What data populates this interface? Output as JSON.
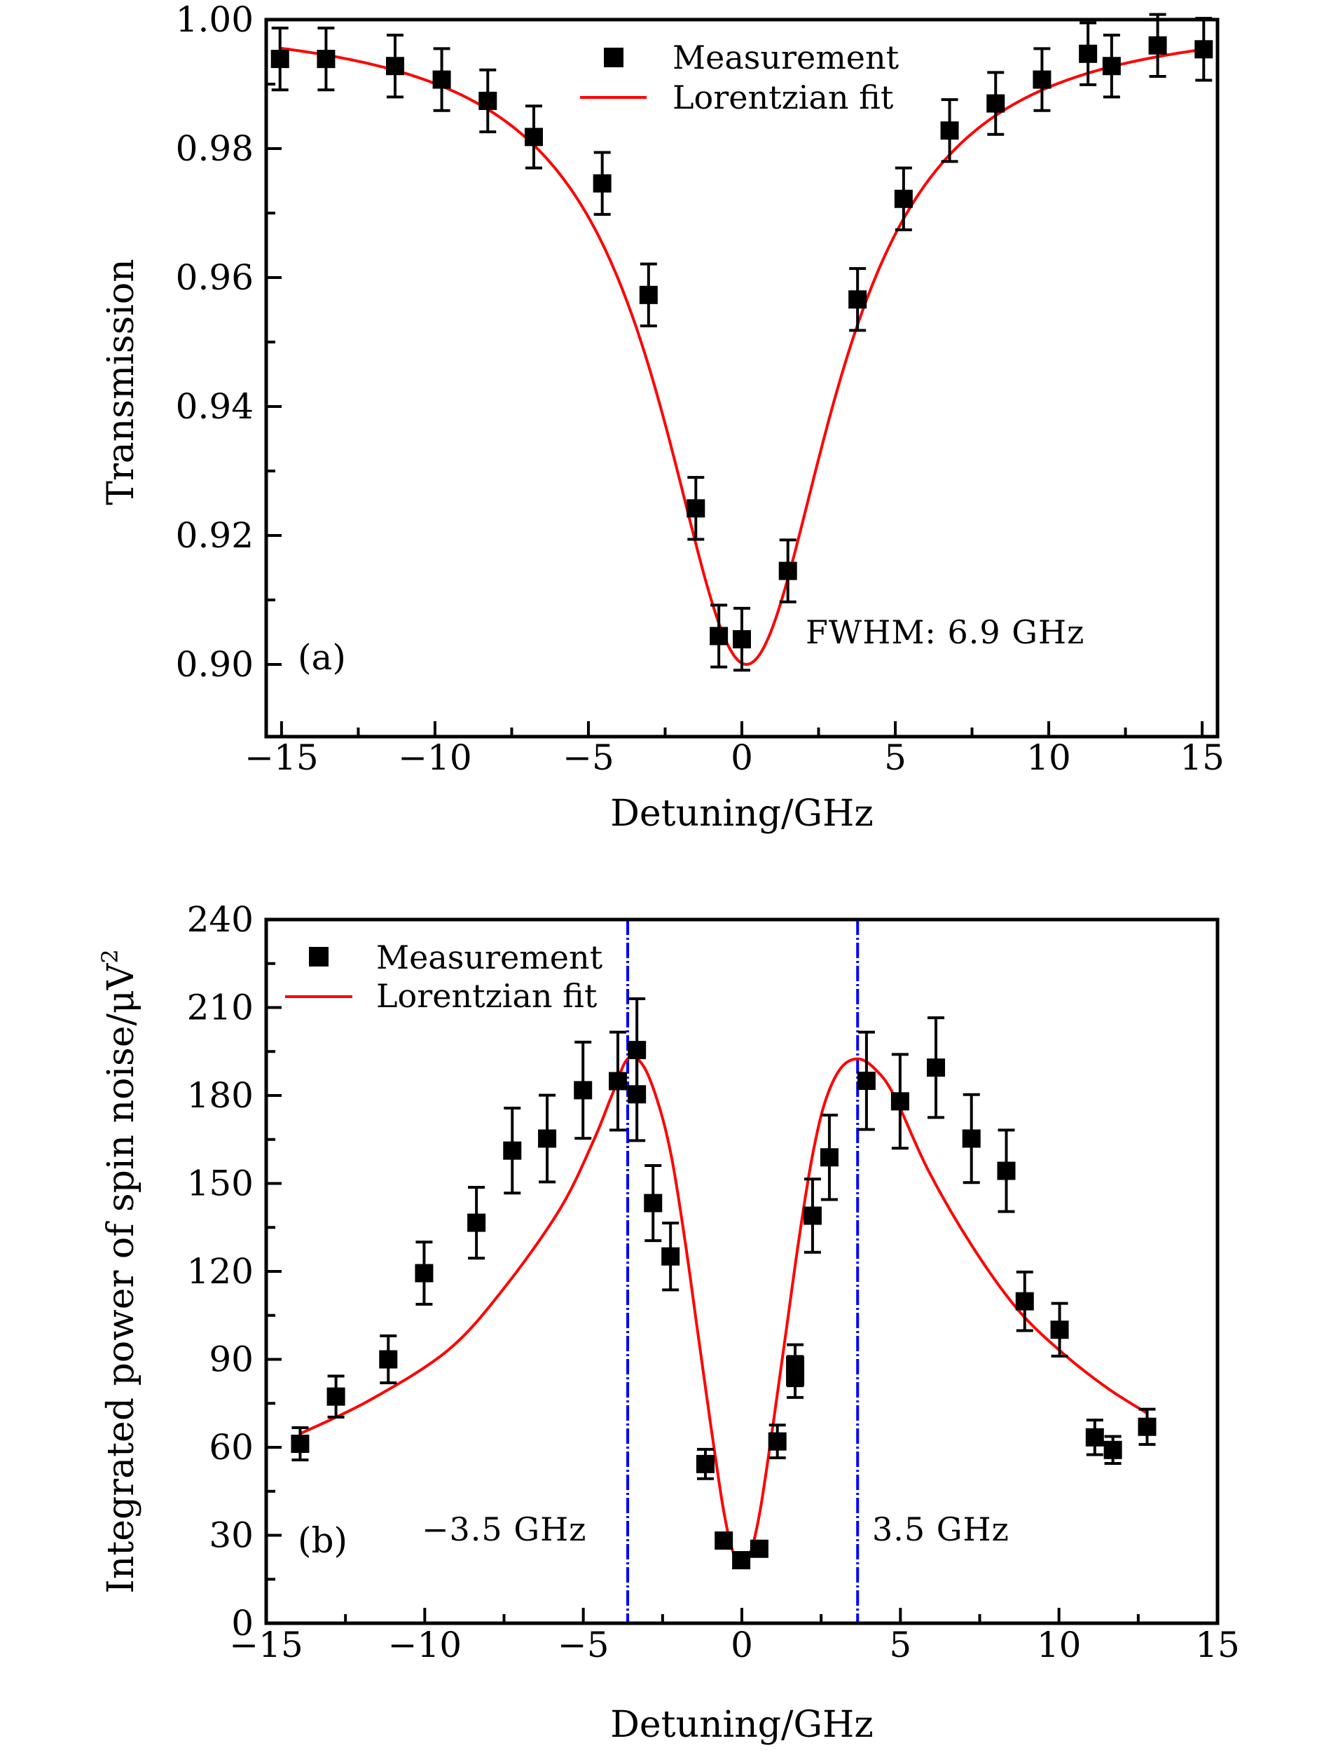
{
  "chart_data": [
    {
      "id": "a",
      "type": "scatter",
      "panel_label": "(a)",
      "title": "",
      "xlabel": "Detuning/GHz",
      "ylabel": "Transmission",
      "xlim": [
        -15.5,
        15.5
      ],
      "ylim": [
        0.8888,
        1.0
      ],
      "xticks": [
        -15,
        -10,
        -5,
        0,
        5,
        10,
        15
      ],
      "xtick_labels": [
        "−15",
        "−10",
        "−5",
        "0",
        "5",
        "10",
        "15"
      ],
      "xminor": [
        -12.5,
        -7.5,
        -2.5,
        2.5,
        7.5,
        12.5
      ],
      "yticks": [
        0.9,
        0.92,
        0.94,
        0.96,
        0.98,
        1.0
      ],
      "ytick_labels": [
        "0.90",
        "0.92",
        "0.94",
        "0.96",
        "0.98",
        "1.00"
      ],
      "yminor": [
        0.91,
        0.93,
        0.95,
        0.97,
        0.99
      ],
      "grid": false,
      "legend": {
        "placement": "top-center",
        "entries": [
          {
            "label": "Measurement",
            "kind": "marker",
            "color": "#000000"
          },
          {
            "label": "Lorentzian fit",
            "kind": "line",
            "color": "#ff0000"
          }
        ]
      },
      "annotations": [
        {
          "text": "FWHM: 6.9 GHz",
          "x": 2.0,
          "y": 0.9016
        }
      ],
      "series": [
        {
          "name": "Measurement",
          "color": "#000000",
          "x": [
            -15.05,
            -13.55,
            -11.3,
            -9.78,
            -8.28,
            -6.78,
            -4.55,
            -3.04,
            -1.5,
            -0.75,
            0.0,
            1.5,
            3.77,
            5.27,
            6.77,
            8.27,
            9.78,
            11.28,
            12.05,
            13.55,
            15.05
          ],
          "y": [
            0.9939,
            0.9939,
            0.9928,
            0.9907,
            0.9874,
            0.9818,
            0.9746,
            0.9573,
            0.9242,
            0.9044,
            0.9039,
            0.9145,
            0.9566,
            0.9722,
            0.9828,
            0.987,
            0.9907,
            0.9947,
            0.9928,
            0.996,
            0.9954
          ],
          "yerr": [
            0.0048,
            0.0048,
            0.0048,
            0.0048,
            0.0048,
            0.0048,
            0.0048,
            0.0048,
            0.0048,
            0.0048,
            0.0048,
            0.0048,
            0.0048,
            0.0048,
            0.0048,
            0.0048,
            0.0048,
            0.0048,
            0.0048,
            0.0048,
            0.0048
          ]
        },
        {
          "name": "Lorentzian fit",
          "color": "#ff0000",
          "model": "lorentzian-dip",
          "params": {
            "baseline": 1.0005,
            "minimum": 0.9,
            "center": 0.15,
            "fwhm": 6.9
          },
          "x_range": [
            -15.05,
            15.05
          ]
        }
      ]
    },
    {
      "id": "b",
      "type": "scatter",
      "panel_label": "(b)",
      "title": "",
      "xlabel": "Detuning/GHz",
      "ylabel": "Integrated power of spin noise/μV",
      "ylabel_superscript": "2",
      "xlim": [
        -15,
        15
      ],
      "ylim": [
        0,
        240
      ],
      "xticks": [
        -15,
        -10,
        -5,
        0,
        5,
        10,
        15
      ],
      "xtick_labels": [
        "−15",
        "−10",
        "−5",
        "0",
        "5",
        "10",
        "15"
      ],
      "xminor": [
        -12.5,
        -7.5,
        -2.5,
        2.5,
        7.5,
        12.5
      ],
      "yticks": [
        0,
        30,
        60,
        90,
        120,
        150,
        180,
        210,
        240
      ],
      "ytick_labels": [
        "0",
        "30",
        "60",
        "90",
        "120",
        "150",
        "180",
        "210",
        "240"
      ],
      "yminor": [
        15,
        45,
        75,
        105,
        135,
        165,
        195,
        225
      ],
      "grid": false,
      "legend": {
        "placement": "top-left",
        "entries": [
          {
            "label": "Measurement",
            "kind": "marker",
            "color": "#000000"
          },
          {
            "label": "Lorentzian fit",
            "kind": "line",
            "color": "#ff0000"
          }
        ]
      },
      "vlines": [
        {
          "x": -3.6,
          "color": "#0000ff",
          "style": "dash-dot",
          "label": "−3.5 GHz"
        },
        {
          "x": 3.65,
          "color": "#0000ff",
          "style": "dash-dot",
          "label": "3.5 GHz"
        }
      ],
      "series": [
        {
          "name": "Measurement",
          "color": "#000000",
          "x": [
            -13.93,
            -12.8,
            -11.15,
            -10.02,
            -8.37,
            -7.24,
            -6.14,
            -5.01,
            -3.91,
            -3.31,
            -3.31,
            -2.8,
            -2.25,
            -1.15,
            -0.57,
            -0.02,
            0.55,
            1.12,
            1.68,
            1.68,
            2.23,
            2.76,
            3.93,
            4.99,
            6.12,
            7.24,
            8.34,
            8.92,
            10.02,
            11.13,
            11.7,
            12.78
          ],
          "y": [
            61.2,
            77.3,
            90.0,
            119.4,
            136.6,
            161.2,
            165.3,
            181.8,
            184.9,
            195.5,
            180.4,
            143.3,
            125.1,
            54.3,
            28.2,
            21.5,
            25.4,
            62.0,
            88.0,
            84.0,
            139.0,
            158.9,
            185.0,
            178.0,
            189.5,
            165.3,
            154.3,
            109.8,
            100.1,
            63.4,
            59.1,
            67.0
          ],
          "yerr": [
            5.5,
            7.0,
            8.0,
            10.6,
            12.1,
            14.5,
            14.8,
            16.4,
            16.7,
            17.5,
            15.8,
            12.8,
            11.4,
            5.0,
            1.5,
            1.5,
            1.5,
            5.6,
            7.0,
            7.0,
            12.5,
            14.4,
            16.6,
            16.0,
            17.0,
            15.0,
            13.9,
            10.0,
            9.0,
            5.9,
            4.6,
            6.0
          ]
        },
        {
          "name": "Lorentzian fit",
          "color": "#ff0000",
          "x": [
            -13.94,
            -11.75,
            -9.28,
            -7.52,
            -5.75,
            -4.7,
            -4.1,
            -3.6,
            -3.1,
            -2.6,
            -2.2,
            -1.8,
            -1.4,
            -1.0,
            -0.6,
            -0.3,
            0.0,
            0.3,
            0.6,
            1.0,
            1.4,
            1.8,
            2.2,
            2.6,
            3.1,
            3.65,
            4.2,
            4.8,
            5.9,
            7.3,
            8.7,
            10.13,
            11.55,
            12.8
          ],
          "y": [
            64.6,
            76.0,
            93.0,
            114.0,
            141.0,
            164.0,
            180.0,
            192.5,
            190.0,
            176.0,
            158.0,
            131.0,
            100.0,
            69.0,
            40.0,
            25.0,
            20.0,
            25.0,
            40.0,
            69.0,
            100.0,
            131.0,
            158.0,
            177.0,
            189.0,
            192.5,
            189.0,
            180.0,
            154.0,
            128.0,
            107.0,
            92.0,
            80.0,
            71.5
          ]
        }
      ]
    }
  ]
}
